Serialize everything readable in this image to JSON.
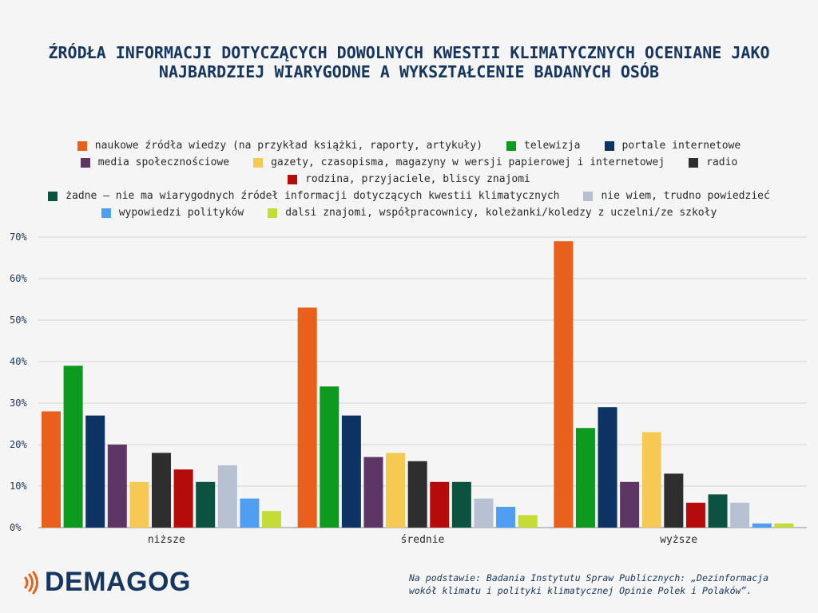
{
  "title": "ŹRÓDŁA INFORMACJI DOTYCZĄCYCH DOWOLNYCH KWESTII KLIMATYCZNYCH OCENIANE JAKO NAJBARDZIEJ WIARYGODNE A WYKSZTAŁCENIE BADANYCH OSÓB",
  "source": "Na podstawie: Badania Instytutu Spraw Publicznych: „Dezinformacja wokół klimatu i polityki klimatycznej Opinie Polek i Polaków”.",
  "logo": {
    "text": "DEMAGOG"
  },
  "chart_data": {
    "type": "bar",
    "categories": [
      "niższe",
      "średnie",
      "wyższe"
    ],
    "ylim": [
      0,
      70
    ],
    "yticks": [
      "0%",
      "10%",
      "20%",
      "30%",
      "40%",
      "50%",
      "60%",
      "70%"
    ],
    "grid": true,
    "legend_position": "top",
    "series": [
      {
        "name": "naukowe źródła wiedzy (na przykład książki, raporty, artykuły)",
        "color": "#e8601c",
        "values": [
          28,
          53,
          69
        ]
      },
      {
        "name": "telewizja",
        "color": "#0c9a1f",
        "values": [
          39,
          34,
          24
        ]
      },
      {
        "name": "portale internetowe",
        "color": "#0d3365",
        "values": [
          27,
          27,
          29
        ]
      },
      {
        "name": "media społecznościowe",
        "color": "#5e3665",
        "values": [
          20,
          17,
          11
        ]
      },
      {
        "name": "gazety, czasopisma, magazyny w wersji papierowej i internetowej",
        "color": "#f6c955",
        "values": [
          11,
          18,
          23
        ]
      },
      {
        "name": "radio",
        "color": "#2e2e2e",
        "values": [
          18,
          16,
          13
        ]
      },
      {
        "name": "rodzina, przyjaciele, bliscy znajomi",
        "color": "#b50b0b",
        "values": [
          14,
          11,
          6
        ]
      },
      {
        "name": "żadne – nie ma wiarygodnych źródeł informacji dotyczących kwestii klimatycznych",
        "color": "#0b5340",
        "values": [
          11,
          11,
          8
        ]
      },
      {
        "name": "nie wiem, trudno powiedzieć",
        "color": "#b8c1d1",
        "values": [
          15,
          7,
          6
        ]
      },
      {
        "name": "wypowiedzi polityków",
        "color": "#4f9ef2",
        "values": [
          7,
          5,
          1
        ]
      },
      {
        "name": "dalsi znajomi, współpracownicy, koleżanki/koledzy z uczelni/ze szkoły",
        "color": "#c5dc36",
        "values": [
          4,
          3,
          1
        ]
      }
    ]
  }
}
